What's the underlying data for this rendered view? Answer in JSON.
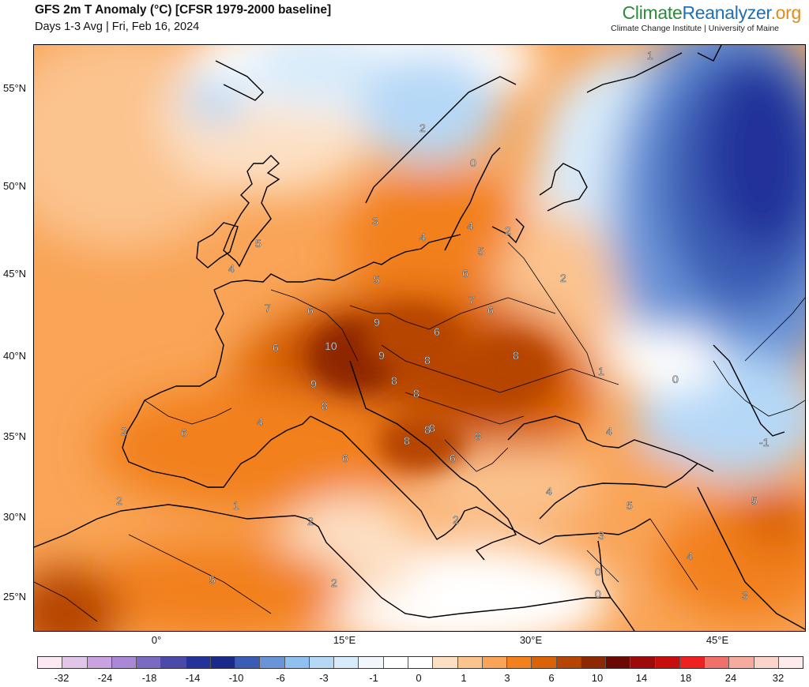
{
  "header": {
    "title": "GFS 2m T Anomaly (°C) [CFSR 1979-2000 baseline]",
    "subtitle": "Days 1-3 Avg | Fri, Feb 16, 2024",
    "brand_part1": "Climate",
    "brand_part2": "Reanalyzer",
    "brand_part3": ".org",
    "brand_sub": "Climate Change Institute | University of Maine"
  },
  "axes": {
    "y_labels": [
      "55°N",
      "50°N",
      "45°N",
      "40°N",
      "35°N",
      "30°N",
      "25°N"
    ],
    "x_labels": [
      "0°",
      "15°E",
      "30°E",
      "45°E"
    ]
  },
  "colorbar": {
    "labels": [
      "-32",
      "-24",
      "-18",
      "-14",
      "-10",
      "-6",
      "-3",
      "-1",
      "0",
      "1",
      "3",
      "6",
      "10",
      "14",
      "18",
      "24",
      "32"
    ],
    "colors": [
      "#fbe8f2",
      "#e2c6ea",
      "#c9a3e0",
      "#a988d6",
      "#7a6ac2",
      "#4b4aa8",
      "#23339a",
      "#1a2a8a",
      "#3a5cb4",
      "#6a94d8",
      "#8fc0f0",
      "#b5d8f7",
      "#d8ebfa",
      "#f0f6fc",
      "#ffffff",
      "#ffffff",
      "#fde0c4",
      "#fbc38e",
      "#f9a457",
      "#f2801c",
      "#db6206",
      "#b64404",
      "#8e2802",
      "#6b0a02",
      "#9c0a0a",
      "#c80d0d",
      "#ee2020",
      "#f0716a",
      "#f6ab9e",
      "#fad4c8",
      "#fdeaec"
    ]
  },
  "map": {
    "contour_labels": [
      "1",
      "2",
      "0",
      "3",
      "4",
      "4",
      "2",
      "5",
      "5",
      "4",
      "5",
      "6",
      "2",
      "7",
      "6",
      "7",
      "6",
      "9",
      "10",
      "6",
      "6",
      "9",
      "8",
      "8",
      "9",
      "8",
      "8",
      "8",
      "1",
      "0",
      "8",
      "4",
      "2",
      "6",
      "8",
      "8",
      "8",
      "6",
      "4",
      "-1",
      "6",
      "2",
      "1",
      "4",
      "5",
      "5",
      "2",
      "2",
      "3",
      "0",
      "4",
      "0",
      "5",
      "2",
      "3"
    ]
  }
}
